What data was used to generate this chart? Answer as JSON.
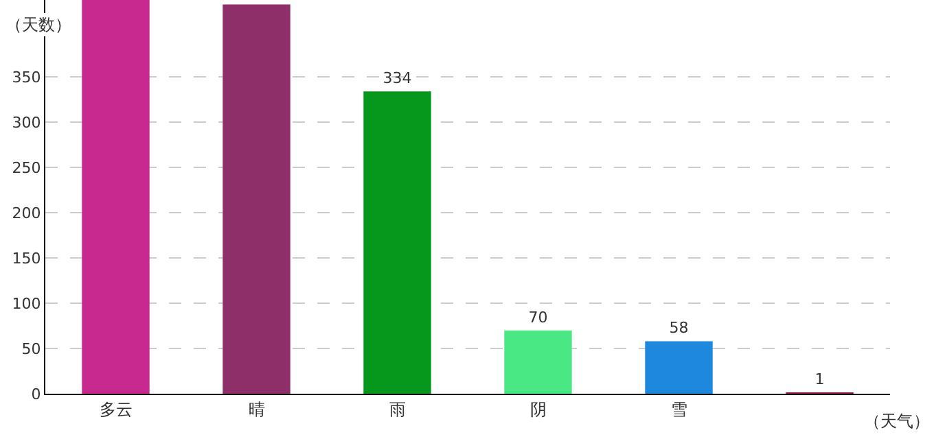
{
  "chart_data": {
    "type": "bar",
    "ylabel": "（天数）",
    "xlabel": "（天气）",
    "categories": [
      "多云",
      "晴",
      "雨",
      "阴",
      "雪",
      null
    ],
    "values": [
      435,
      430,
      334,
      70,
      58,
      1
    ],
    "value_labels": [
      null,
      null,
      "334",
      "70",
      "58",
      "1"
    ],
    "colors": [
      "#c8298e",
      "#8f2f6a",
      "#06981d",
      "#4ae885",
      "#1e88de",
      "#8b1a4a"
    ],
    "ylim": [
      0,
      435
    ],
    "yticks": [
      0,
      50,
      100,
      150,
      200,
      250,
      300,
      350
    ],
    "grid": "y"
  }
}
